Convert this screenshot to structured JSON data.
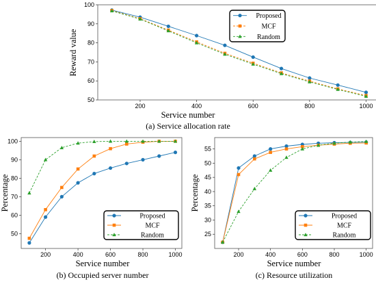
{
  "chart_data": [
    {
      "type": "line",
      "caption": "(a) Service allocation rate",
      "xlabel": "Service number",
      "ylabel": "Reward value",
      "x": [
        100,
        200,
        300,
        400,
        500,
        600,
        700,
        800,
        900,
        1000
      ],
      "xlim": [
        50,
        1040
      ],
      "ylim": [
        50,
        100
      ],
      "xticks": [
        200,
        400,
        600,
        800,
        1000
      ],
      "yticks": [
        50,
        60,
        70,
        80,
        90,
        100
      ],
      "grid": false,
      "legend_position": "top-right",
      "series": [
        {
          "name": "Proposed",
          "marker": "circle",
          "dash": "solid",
          "color": "#1f77b4",
          "values": [
            97.2,
            93.5,
            88.7,
            83.8,
            78.7,
            72.5,
            66.5,
            61.5,
            57.8,
            54.0
          ]
        },
        {
          "name": "MCF",
          "marker": "square",
          "dash": "dashed",
          "color": "#ff7f0e",
          "values": [
            97.0,
            92.7,
            86.7,
            80.5,
            74.5,
            69.3,
            64.2,
            59.9,
            55.8,
            52.3
          ]
        },
        {
          "name": "Random",
          "marker": "triangle",
          "dash": "dashed",
          "color": "#2ca02c",
          "values": [
            96.8,
            92.5,
            86.3,
            80.0,
            74.0,
            68.8,
            63.8,
            59.5,
            55.5,
            51.9
          ]
        }
      ]
    },
    {
      "type": "line",
      "caption": "(b) Occupied server number",
      "xlabel": "Service number",
      "ylabel": "Percentage",
      "x": [
        100,
        200,
        300,
        400,
        500,
        600,
        700,
        800,
        900,
        1000
      ],
      "xlim": [
        50,
        1040
      ],
      "ylim": [
        42,
        102
      ],
      "xticks": [
        200,
        400,
        600,
        800,
        1000
      ],
      "yticks": [
        50,
        60,
        70,
        80,
        90,
        100
      ],
      "grid": false,
      "legend_position": "bottom-right",
      "series": [
        {
          "name": "Proposed",
          "marker": "circle",
          "dash": "solid",
          "color": "#1f77b4",
          "values": [
            45.0,
            59.0,
            70.0,
            77.5,
            82.5,
            85.5,
            88.0,
            90.0,
            92.0,
            94.0
          ]
        },
        {
          "name": "MCF",
          "marker": "square",
          "dash": "solid",
          "color": "#ff7f0e",
          "values": [
            47.5,
            63.0,
            75.0,
            85.0,
            92.0,
            96.0,
            98.5,
            99.5,
            100.0,
            100.0
          ]
        },
        {
          "name": "Random",
          "marker": "triangle",
          "dash": "dashed",
          "color": "#2ca02c",
          "values": [
            72.0,
            90.0,
            96.5,
            99.0,
            99.8,
            100.0,
            100.0,
            100.0,
            100.0,
            100.0
          ]
        }
      ]
    },
    {
      "type": "line",
      "caption": "(c) Resource utilization",
      "xlabel": "Service number",
      "ylabel": "Percentage",
      "x": [
        100,
        200,
        300,
        400,
        500,
        600,
        700,
        800,
        900,
        1000
      ],
      "xlim": [
        50,
        1040
      ],
      "ylim": [
        20,
        59
      ],
      "xticks": [
        200,
        400,
        600,
        800,
        1000
      ],
      "yticks": [
        25,
        30,
        35,
        40,
        45,
        50,
        55
      ],
      "grid": false,
      "legend_position": "bottom-right",
      "series": [
        {
          "name": "Proposed",
          "marker": "circle",
          "dash": "solid",
          "color": "#1f77b4",
          "values": [
            22.2,
            48.3,
            52.5,
            55.0,
            56.0,
            56.6,
            57.0,
            57.2,
            57.3,
            57.4
          ]
        },
        {
          "name": "MCF",
          "marker": "square",
          "dash": "solid",
          "color": "#ff7f0e",
          "values": [
            22.2,
            46.0,
            51.5,
            53.8,
            55.0,
            55.8,
            56.3,
            56.7,
            57.0,
            57.1
          ]
        },
        {
          "name": "Random",
          "marker": "triangle",
          "dash": "dashed",
          "color": "#2ca02c",
          "values": [
            22.2,
            33.0,
            41.0,
            47.5,
            52.0,
            55.0,
            56.3,
            57.0,
            57.4,
            57.6
          ]
        }
      ]
    }
  ]
}
